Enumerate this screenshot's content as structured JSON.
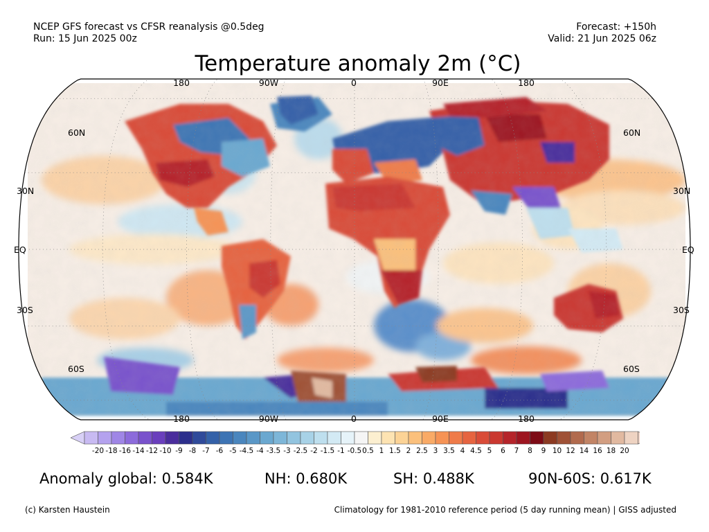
{
  "header": {
    "line1_left": "NCEP GFS forecast vs CFSR reanalysis @0.5deg",
    "line2_left": "Run: 15 Jun 2025 00z",
    "line1_right": "Forecast: +150h",
    "line2_right": "Valid: 21 Jun 2025 06z"
  },
  "title": "Temperature anomaly 2m (°C)",
  "map": {
    "projection": "Robinson",
    "lon_labels_top": [
      "180",
      "90W",
      "0",
      "90E",
      "180"
    ],
    "lon_labels_bottom": [
      "180",
      "90W",
      "0",
      "90E",
      "180"
    ],
    "lat_labels_left": [
      "60N",
      "30N",
      "EQ",
      "30S",
      "60S"
    ],
    "lat_labels_right": [
      "60N",
      "30N",
      "EQ",
      "30S",
      "60S"
    ]
  },
  "colorbar": {
    "labels": [
      "-20",
      "-18",
      "-16",
      "-14",
      "-12",
      "-10",
      "-9",
      "-8",
      "-7",
      "-6",
      "-5",
      "-4.5",
      "-4",
      "-3.5",
      "-3",
      "-2.5",
      "-2",
      "-1.5",
      "-1",
      "-0.5",
      "0.5",
      "1",
      "1.5",
      "2",
      "2.5",
      "3",
      "3.5",
      "4",
      "4.5",
      "5",
      "6",
      "7",
      "8",
      "9",
      "10",
      "12",
      "14",
      "16",
      "18",
      "20"
    ],
    "colors": [
      "#c8baf2",
      "#b4a2ee",
      "#9f86e6",
      "#8c6bdb",
      "#7952cc",
      "#6a3fbd",
      "#4a2d9c",
      "#2c2f8c",
      "#2f4a9a",
      "#3461a8",
      "#3d74b4",
      "#4a86be",
      "#5a97c7",
      "#6aa8d0",
      "#7db6d8",
      "#92c4df",
      "#a8d2e7",
      "#bedfee",
      "#d3eaf4",
      "#e6f3f9",
      "#f5f5f5",
      "#fcefd0",
      "#fde3b2",
      "#fcd396",
      "#fbc07c",
      "#f9aa66",
      "#f69355",
      "#ef7b49",
      "#e66440",
      "#d94c38",
      "#ca3830",
      "#b5242a",
      "#9d1520",
      "#7d0b16",
      "#8c3a22",
      "#9f5136",
      "#b16a4d",
      "#c28465",
      "#d29e81",
      "#e1b9a0",
      "#eed3c2"
    ],
    "low_end_color": "#d8d0f6",
    "high_end_color": "#f3d6c8"
  },
  "stats": {
    "global": "Anomaly global: 0.584K",
    "nh": "NH: 0.680K",
    "sh": "SH: 0.488K",
    "arctic": "90N-60S: 0.617K"
  },
  "footer": {
    "credit": "(c) Karsten Haustein",
    "climatology": "Climatology for 1981-2010 reference period (5 day running mean) | GISS adjusted"
  }
}
